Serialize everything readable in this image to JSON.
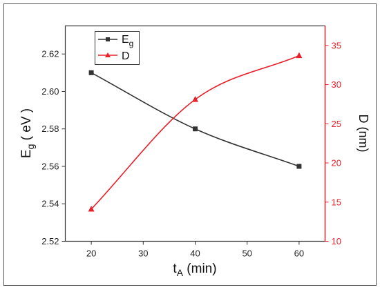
{
  "chart_data": {
    "type": "line",
    "x_categories": [
      20,
      40,
      60
    ],
    "xlabel": {
      "main": "t",
      "sub": "A",
      "rest": " (min)"
    },
    "xlim": [
      15,
      65
    ],
    "x_ticks": [
      20,
      30,
      40,
      50,
      60
    ],
    "y_left": {
      "label": {
        "main": "E",
        "sub": "g",
        "rest": " ( eV )"
      },
      "lim": [
        2.52,
        2.635
      ],
      "ticks": [
        2.52,
        2.54,
        2.56,
        2.58,
        2.6,
        2.62
      ],
      "tick_labels": [
        "2.52",
        "2.54",
        "2.56",
        "2.58",
        "2.60",
        "2.62"
      ],
      "color": "#333333"
    },
    "y_right": {
      "label": "D (nm)",
      "lim": [
        10,
        37.5
      ],
      "ticks": [
        10,
        15,
        20,
        25,
        30,
        35
      ],
      "tick_labels": [
        "10",
        "15",
        "20",
        "25",
        "30",
        "35"
      ],
      "color": "#e8202a"
    },
    "series": [
      {
        "name": "E",
        "name_sub": "g",
        "axis": "left",
        "x": [
          20,
          40,
          60
        ],
        "y": [
          2.61,
          2.58,
          2.56
        ],
        "color": "#333333",
        "marker": "square"
      },
      {
        "name": "D",
        "axis": "right",
        "x": [
          20,
          40,
          60
        ],
        "y": [
          14.1,
          28.1,
          33.7
        ],
        "color": "#e8202a",
        "marker": "triangle"
      }
    ],
    "legend": "top-left",
    "grid": false
  }
}
